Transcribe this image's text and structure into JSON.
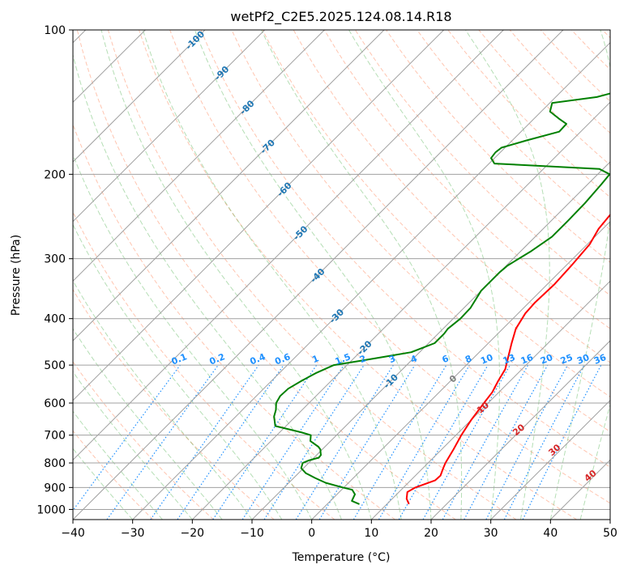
{
  "chart_data": {
    "type": "line",
    "title": "wetPf2_C2E5.2025.124.08.14.R18",
    "xlabel": "Temperature (°C)",
    "ylabel": "Pressure (hPa)",
    "xlim": [
      -40,
      50
    ],
    "ylim": [
      1050,
      100
    ],
    "x_ticks": [
      -40,
      -30,
      -20,
      -10,
      0,
      10,
      20,
      30,
      40,
      50
    ],
    "y_ticks": [
      100,
      200,
      300,
      400,
      500,
      600,
      700,
      800,
      900,
      1000
    ],
    "y_scale": "log",
    "grid": true,
    "series": [
      {
        "color": "#ff0000",
        "p": [
          975,
          950,
          920,
          900,
          870,
          850,
          820,
          800,
          750,
          700,
          650,
          600,
          570,
          540,
          510,
          480,
          450,
          420,
          390,
          370,
          340,
          310,
          280,
          260,
          240,
          220,
          210,
          200,
          190,
          180,
          170,
          160,
          150,
          140,
          130,
          120,
          110,
          100
        ],
        "values": [
          13.7,
          12.4,
          11.4,
          12.0,
          14.1,
          14.2,
          13.4,
          12.9,
          12.0,
          10.9,
          10.0,
          9.3,
          8.9,
          8.0,
          7.2,
          5.6,
          3.9,
          2.2,
          1.2,
          1.0,
          1.2,
          0.9,
          0.4,
          -0.7,
          -1.2,
          -1.1,
          0.0,
          2.0,
          5.0,
          7.5,
          9.0,
          10.5,
          11.2,
          11.6,
          12.6,
          14.6,
          16.6,
          18.4
        ]
      },
      {
        "color": "#008000",
        "p": [
          975,
          960,
          930,
          910,
          900,
          880,
          860,
          840,
          820,
          800,
          790,
          780,
          770,
          760,
          750,
          740,
          720,
          700,
          690,
          670,
          640,
          620,
          600,
          580,
          560,
          540,
          520,
          500,
          490,
          480,
          470,
          450,
          430,
          420,
          400,
          380,
          350,
          320,
          310,
          290,
          270,
          250,
          230,
          210,
          200,
          195,
          190,
          185,
          180,
          176,
          170,
          163,
          157,
          153,
          148,
          142,
          138,
          135,
          130,
          120,
          115,
          110,
          100
        ],
        "values": [
          5.4,
          3.6,
          3.0,
          1.8,
          -0.2,
          -3.8,
          -6.4,
          -8.8,
          -10.4,
          -11.0,
          -10.4,
          -9.2,
          -9.3,
          -9.8,
          -10.3,
          -11.1,
          -13.4,
          -14.3,
          -16.5,
          -21.8,
          -23.6,
          -24.4,
          -25.5,
          -26.0,
          -25.9,
          -25.0,
          -23.9,
          -22.2,
          -18.5,
          -15.0,
          -11.4,
          -9.0,
          -9.0,
          -9.2,
          -8.8,
          -8.9,
          -10.0,
          -10.0,
          -9.8,
          -8.3,
          -7.2,
          -7.2,
          -7.3,
          -7.7,
          -8.0,
          -10.6,
          -29.1,
          -30.6,
          -30.8,
          -30.6,
          -27.6,
          -23.6,
          -23.7,
          -25.9,
          -28.5,
          -29.6,
          -23.1,
          -21.0,
          -14.2,
          -5.7,
          -5.5,
          -5.0,
          0.5
        ]
      }
    ],
    "isotherm_labels": [
      "-100",
      "-90",
      "-80",
      "-70",
      "-60",
      "-50",
      "-40",
      "-30",
      "-20",
      "-10"
    ],
    "mixing_ratio_labels": [
      "0.1",
      "0.2",
      "0.4",
      "0.6",
      "1",
      "1.5",
      "2",
      "3",
      "4",
      "6",
      "8",
      "10",
      "13",
      "16",
      "20",
      "25",
      "30",
      "36"
    ],
    "mixing_ratio_values": [
      0.1,
      0.2,
      0.4,
      0.6,
      1,
      1.5,
      2,
      3,
      4,
      6,
      8,
      10,
      13,
      16,
      20,
      25,
      30,
      36
    ],
    "moist_adiabat_labels": [
      "0",
      "10",
      "20",
      "30",
      "40"
    ],
    "colors": {
      "isotherm_label": "#1f77b4",
      "mixing_ratio": "#1e90ff",
      "dry_adiabat": "#ff7f50",
      "moist_adiabat": "#2ca02c",
      "moist_label": "#d62728",
      "zero_label": "#808080",
      "grid": "#a0a0a0"
    }
  }
}
